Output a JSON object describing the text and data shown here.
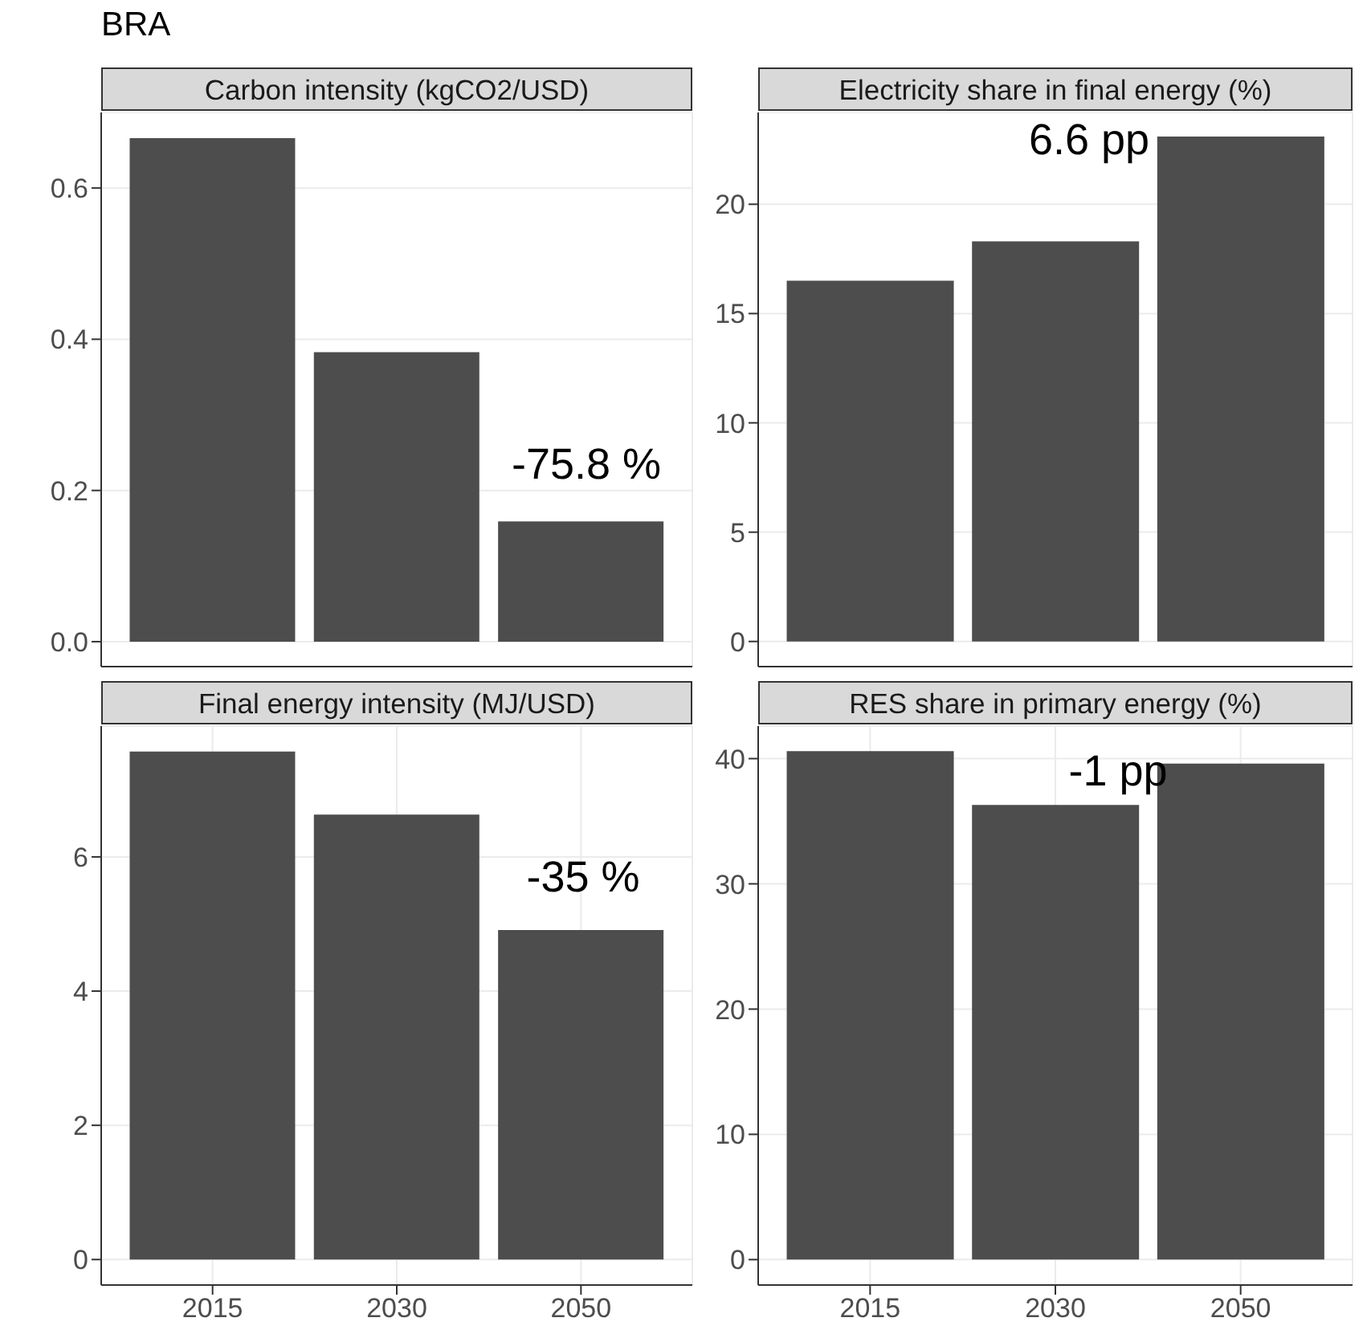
{
  "chart_data": [
    {
      "type": "bar",
      "title": "Carbon intensity (kgCO2/USD)",
      "categories": [
        "2015",
        "2030",
        "2050"
      ],
      "values": [
        0.666,
        0.383,
        0.159
      ],
      "color": "#4d4d4d",
      "ylim": [
        -0.033,
        0.7
      ],
      "yticks": [
        {
          "value": 0,
          "label": "0.0"
        },
        0.2,
        0.4,
        0.6
      ],
      "grid": true,
      "tick_labels": "y",
      "annotations": [
        "BRA",
        "-75.8 %"
      ]
    },
    {
      "type": "bar",
      "title": "Electricity share in final energy (%)",
      "categories": [
        "2015",
        "2030",
        "2050"
      ],
      "values": [
        16.5,
        18.3,
        23.1
      ],
      "color": "#4d4d4d",
      "ylim": [
        -1.15,
        24.2
      ],
      "yticks": [
        0,
        5,
        10,
        15,
        20
      ],
      "grid": true,
      "tick_labels": "y",
      "annotations": [
        "6.6 pp"
      ]
    },
    {
      "type": "bar",
      "title": "Final energy intensity (MJ/USD)",
      "categories": [
        "2015",
        "2030",
        "2050"
      ],
      "values": [
        7.57,
        6.63,
        4.91
      ],
      "color": "#4d4d4d",
      "ylim": [
        -0.38,
        7.95
      ],
      "yticks": [
        0,
        2,
        4,
        6
      ],
      "grid": true,
      "annotations": [
        "-35 %"
      ]
    },
    {
      "type": "bar",
      "title": "RES share in primary energy (%)",
      "categories": [
        "2015",
        "2030",
        "2050"
      ],
      "values": [
        40.6,
        36.3,
        39.6
      ],
      "color": "#4d4d4d",
      "ylim": [
        -2.03,
        42.6
      ],
      "yticks": [
        0,
        10,
        20,
        30,
        40
      ],
      "grid": true,
      "annotations": [
        "-1 pp"
      ]
    }
  ]
}
